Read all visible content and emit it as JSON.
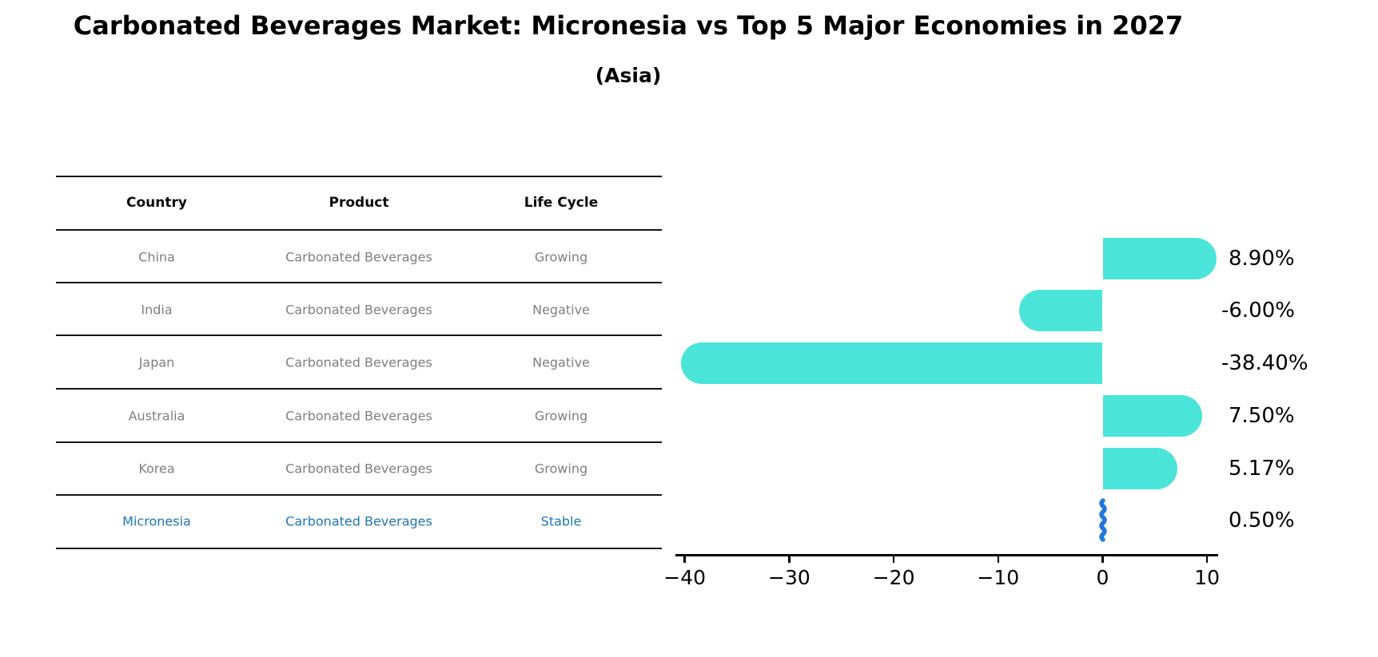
{
  "title": "Carbonated Beverages Market: Micronesia vs Top 5 Major Economies in 2027",
  "subtitle": "(Asia)",
  "table": {
    "headers": [
      "Country",
      "Product",
      "Life Cycle"
    ],
    "rows": [
      {
        "country": "China",
        "product": "Carbonated Beverages",
        "life_cycle": "Growing",
        "highlighted": false
      },
      {
        "country": "India",
        "product": "Carbonated Beverages",
        "life_cycle": "Negative",
        "highlighted": false
      },
      {
        "country": "Japan",
        "product": "Carbonated Beverages",
        "life_cycle": "Negative",
        "highlighted": false
      },
      {
        "country": "Australia",
        "product": "Carbonated Beverages",
        "life_cycle": "Growing",
        "highlighted": false
      },
      {
        "country": "Korea",
        "product": "Carbonated Beverages",
        "life_cycle": "Growing",
        "highlighted": false
      },
      {
        "country": "Micronesia",
        "product": "Carbonated Beverages",
        "life_cycle": "Stable",
        "highlighted": true
      }
    ]
  },
  "chart_data": {
    "type": "bar",
    "orientation": "horizontal",
    "categories": [
      "China",
      "India",
      "Japan",
      "Australia",
      "Korea",
      "Micronesia"
    ],
    "values": [
      8.9,
      -6.0,
      -38.4,
      7.5,
      5.17,
      0.5
    ],
    "value_labels": [
      "8.90%",
      "-6.00%",
      "-38.40%",
      "7.50%",
      "5.17%",
      "0.50%"
    ],
    "xticks": [
      -40,
      -30,
      -20,
      -10,
      0,
      10
    ],
    "xtick_labels": [
      "−40",
      "−30",
      "−20",
      "−10",
      "0",
      "10"
    ],
    "xlim": [
      -40.9,
      11.1
    ],
    "grid": false,
    "legend": false,
    "bar_color": "#4BE4D9",
    "highlight_color": "#2377DB",
    "highlight_index": 5
  },
  "colors": {
    "table_text": "#7f7f7f",
    "table_highlight_text": "#1F77B4",
    "axis": "#000000"
  }
}
